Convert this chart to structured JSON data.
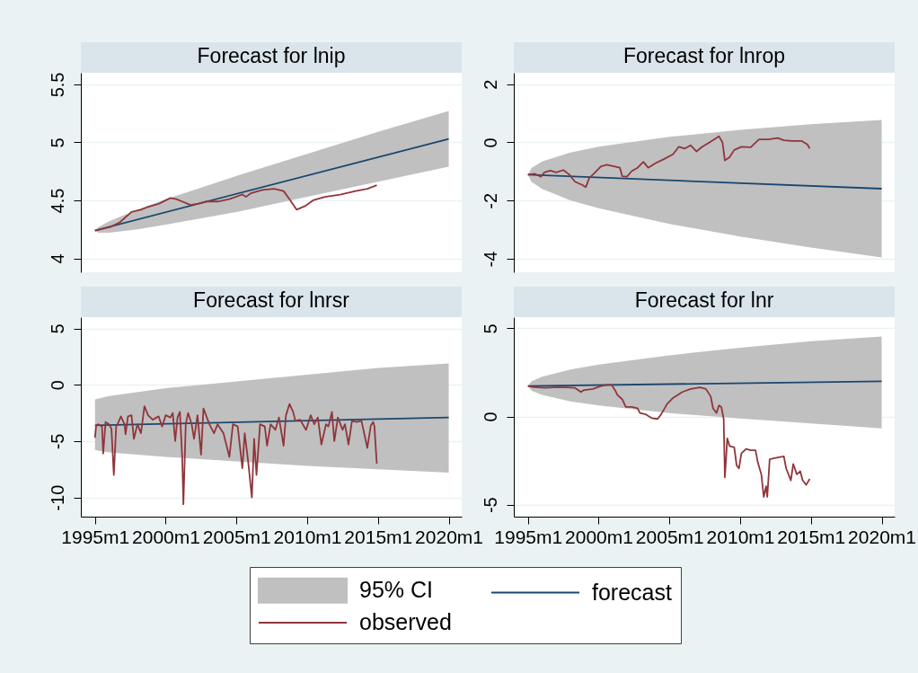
{
  "chart_data": [
    {
      "type": "line",
      "title": "Forecast for lnip",
      "xlim": [
        "1994-01",
        "2020-12"
      ],
      "ylim": [
        3.88,
        5.6
      ],
      "yticks": [
        4,
        4.5,
        5,
        5.5
      ],
      "grid": "y",
      "tick_labels": "y",
      "series": [
        {
          "color": "#c0c0c0",
          "x": [
            "1995-01",
            "1995-04",
            "1996-01",
            "1998-01",
            "2000-01",
            "2005-01",
            "2010-01",
            "2015-01",
            "2020-01"
          ],
          "values": [
            null,
            null,
            null,
            null,
            null,
            null,
            null,
            null,
            null
          ],
          "lower": [
            4.24,
            4.22,
            4.22,
            4.25,
            4.29,
            4.4,
            4.53,
            4.66,
            4.79
          ],
          "upper": [
            4.24,
            4.27,
            4.32,
            4.42,
            4.51,
            4.71,
            4.9,
            5.09,
            5.27
          ]
        },
        {
          "color": "#1a476f",
          "x": [
            "1995-01",
            "2020-01"
          ],
          "values": [
            4.24,
            5.03
          ]
        },
        {
          "color": "#90353b",
          "x": [
            "1995-01",
            "1996-02",
            "1996-10",
            "1997-08",
            "1998-04",
            "1998-09",
            "1999-07",
            "2000-05",
            "2000-10",
            "2001-03",
            "2001-10",
            "2002-04",
            "2002-11",
            "2003-09",
            "2004-07",
            "2005-06",
            "2005-09",
            "2006-01",
            "2006-11",
            "2007-09",
            "2008-05",
            "2008-10",
            "2009-04",
            "2009-11",
            "2010-06",
            "2011-04",
            "2012-05",
            "2013-06",
            "2014-04",
            "2014-12"
          ],
          "values": [
            4.24,
            4.27,
            4.31,
            4.4,
            4.42,
            4.44,
            4.47,
            4.52,
            4.51,
            4.49,
            4.46,
            4.47,
            4.49,
            4.49,
            4.51,
            4.55,
            4.53,
            4.56,
            4.59,
            4.6,
            4.58,
            4.51,
            4.42,
            4.45,
            4.5,
            4.53,
            4.55,
            4.58,
            4.6,
            4.63
          ]
        }
      ]
    },
    {
      "type": "line",
      "title": "Forecast for lnrop",
      "xlim": [
        "1994-01",
        "2020-12"
      ],
      "ylim": [
        -4.46,
        2.39
      ],
      "yticks": [
        -4,
        -2,
        0,
        2
      ],
      "grid": "y",
      "tick_labels": "y",
      "series": [
        {
          "color": "#c0c0c0",
          "x": [
            "1995-01",
            "1995-04",
            "1996-01",
            "1998-01",
            "2000-01",
            "2005-01",
            "2010-01",
            "2015-01",
            "2020-01"
          ],
          "values": [
            null,
            null,
            null,
            null,
            null,
            null,
            null,
            null,
            null
          ],
          "lower": [
            -1.11,
            -1.35,
            -1.6,
            -1.99,
            -2.26,
            -2.8,
            -3.23,
            -3.61,
            -3.95
          ],
          "upper": [
            -1.11,
            -0.88,
            -0.66,
            -0.35,
            -0.15,
            0.19,
            0.43,
            0.62,
            0.77
          ]
        },
        {
          "color": "#1a476f",
          "x": [
            "1995-01",
            "2020-01"
          ],
          "values": [
            -1.11,
            -1.59
          ]
        },
        {
          "color": "#90353b",
          "x": [
            "1995-01",
            "1995-07",
            "1995-12",
            "1996-03",
            "1996-08",
            "1997-01",
            "1997-07",
            "1997-12",
            "1998-05",
            "1998-11",
            "1999-02",
            "1999-05",
            "1999-10",
            "2000-03",
            "2000-08",
            "2001-02",
            "2001-07",
            "2001-09",
            "2002-01",
            "2002-05",
            "2002-10",
            "2003-03",
            "2003-07",
            "2004-01",
            "2004-09",
            "2005-04",
            "2005-09",
            "2006-02",
            "2006-07",
            "2006-12",
            "2007-05",
            "2007-11",
            "2008-05",
            "2008-07",
            "2008-10",
            "2008-12",
            "2009-04",
            "2009-08",
            "2010-02",
            "2010-10",
            "2011-05",
            "2012-01",
            "2012-09",
            "2013-02",
            "2013-09",
            "2014-05",
            "2014-10",
            "2014-12"
          ],
          "values": [
            -1.11,
            -1.08,
            -1.18,
            -1.03,
            -0.97,
            -1.03,
            -0.95,
            -1.1,
            -1.35,
            -1.46,
            -1.54,
            -1.23,
            -1.03,
            -0.82,
            -0.77,
            -0.82,
            -0.87,
            -1.16,
            -1.18,
            -0.99,
            -0.87,
            -0.67,
            -0.87,
            -0.72,
            -0.56,
            -0.41,
            -0.15,
            -0.21,
            -0.1,
            -0.31,
            -0.15,
            0,
            0.15,
            0.21,
            0,
            -0.62,
            -0.51,
            -0.26,
            -0.15,
            -0.17,
            0.1,
            0.1,
            0.15,
            0.07,
            0.05,
            0.05,
            -0.07,
            -0.21
          ]
        }
      ]
    },
    {
      "type": "line",
      "title": "Forecast for lnrsr",
      "xlim": [
        "1994-01",
        "2020-12"
      ],
      "xticks": [
        {
          "value": "1995-01",
          "label": "1995m1"
        },
        {
          "value": "2000-01",
          "label": "2000m1"
        },
        {
          "value": "2005-01",
          "label": "2005m1"
        },
        {
          "value": "2010-01",
          "label": "2010m1"
        },
        {
          "value": "2015-01",
          "label": "2015m1"
        },
        {
          "value": "2020-01",
          "label": "2020m1"
        }
      ],
      "ylim": [
        -11.7,
        6
      ],
      "yticks": [
        -10,
        -5,
        0,
        5
      ],
      "grid": "y",
      "series": [
        {
          "color": "#c0c0c0",
          "x": [
            "1995-01",
            "1996-01",
            "2000-01",
            "2005-01",
            "2010-01",
            "2015-01",
            "2020-01"
          ],
          "values": [
            null,
            null,
            null,
            null,
            null,
            null,
            null
          ],
          "lower": [
            -5.8,
            -6,
            -6.4,
            -6.8,
            -7.2,
            -7.5,
            -7.8
          ],
          "upper": [
            -1.3,
            -1,
            -0.3,
            0.3,
            0.9,
            1.5,
            1.9
          ]
        },
        {
          "color": "#1a476f",
          "x": [
            "1995-01",
            "2020-01"
          ],
          "values": [
            -3.6,
            -2.9
          ]
        },
        {
          "color": "#90353b",
          "x": [
            "1995-01",
            "1995-02",
            "1995-04",
            "1995-07",
            "1995-08",
            "1995-10",
            "1996-01",
            "1996-03",
            "1996-05",
            "1996-07",
            "1996-09",
            "1996-11",
            "1997-02",
            "1997-03",
            "1997-05",
            "1997-08",
            "1997-10",
            "1998-01",
            "1998-04",
            "1998-07",
            "1998-10",
            "1999-02",
            "1999-07",
            "1999-10",
            "2000-01",
            "2000-05",
            "2000-07",
            "2000-09",
            "2000-11",
            "2001-01",
            "2001-03",
            "2001-04",
            "2001-06",
            "2001-08",
            "2001-11",
            "2002-01",
            "2002-04",
            "2002-07",
            "2002-09",
            "2003-02",
            "2003-06",
            "2003-09",
            "2004-02",
            "2004-07",
            "2004-10",
            "2005-02",
            "2005-06",
            "2005-08",
            "2005-11",
            "2006-02",
            "2006-04",
            "2006-06",
            "2006-09",
            "2007-01",
            "2007-03",
            "2007-06",
            "2007-10",
            "2008-01",
            "2008-05",
            "2008-07",
            "2008-10",
            "2009-01",
            "2009-03",
            "2009-07",
            "2009-12",
            "2010-04",
            "2010-07",
            "2010-10",
            "2011-01",
            "2011-05",
            "2011-07",
            "2011-10",
            "2011-12",
            "2012-03",
            "2012-07",
            "2012-09",
            "2012-12",
            "2013-03",
            "2013-07",
            "2013-11",
            "2014-04",
            "2014-07",
            "2014-09",
            "2014-10",
            "2014-12"
          ],
          "values": [
            -4.7,
            -3.6,
            -3.5,
            -3.7,
            -6.1,
            -3.3,
            -3.5,
            -3.9,
            -8,
            -3.7,
            -3.3,
            -2.8,
            -3.5,
            -4.4,
            -2.8,
            -2.7,
            -4.8,
            -3.5,
            -4.3,
            -1.9,
            -2.7,
            -3.1,
            -2.8,
            -3.7,
            -2.7,
            -2.9,
            -2.5,
            -5,
            -2.9,
            -2.4,
            -6.4,
            -10.6,
            -3.5,
            -2.5,
            -3.5,
            -4.8,
            -2.7,
            -6.2,
            -2.1,
            -3.5,
            -4.3,
            -3.5,
            -4.3,
            -6.4,
            -3.5,
            -3.7,
            -7.4,
            -4.3,
            -6.9,
            -10,
            -4.8,
            -8,
            -3.5,
            -3.7,
            -5.4,
            -3.5,
            -4,
            -2.9,
            -5.4,
            -2.7,
            -1.7,
            -2.4,
            -3.2,
            -3.1,
            -4,
            -2.7,
            -3.5,
            -2.9,
            -5.3,
            -3.5,
            -3.7,
            -2.4,
            -5,
            -2.9,
            -4,
            -3.5,
            -5.3,
            -3.2,
            -3.3,
            -3.2,
            -5.6,
            -3.6,
            -3.3,
            -3.7,
            -7
          ]
        }
      ]
    },
    {
      "type": "line",
      "title": "Forecast for lnr",
      "xlim": [
        "1994-01",
        "2020-12"
      ],
      "xticks": [
        {
          "value": "1995-01",
          "label": "1995m1"
        },
        {
          "value": "2000-01",
          "label": "2000m1"
        },
        {
          "value": "2005-01",
          "label": "2005m1"
        },
        {
          "value": "2010-01",
          "label": "2010m1"
        },
        {
          "value": "2015-01",
          "label": "2015m1"
        },
        {
          "value": "2020-01",
          "label": "2020m1"
        }
      ],
      "ylim": [
        -5.68,
        5.63
      ],
      "yticks": [
        -5,
        0,
        5
      ],
      "grid": "y",
      "legend": "bottom",
      "series": [
        {
          "name": "95% CI",
          "color": "#c0c0c0",
          "x": [
            "1995-01",
            "1995-04",
            "1996-01",
            "1998-01",
            "2000-01",
            "2005-01",
            "2010-01",
            "2015-01",
            "2020-01"
          ],
          "values": [
            null,
            null,
            null,
            null,
            null,
            null,
            null,
            null,
            null
          ],
          "lower": [
            1.73,
            1.47,
            1.22,
            0.86,
            0.62,
            0.19,
            -0.12,
            -0.39,
            -0.68
          ],
          "upper": [
            1.73,
            1.99,
            2.26,
            2.66,
            2.94,
            3.47,
            3.9,
            4.27,
            4.54
          ]
        },
        {
          "name": "forecast",
          "color": "#1a476f",
          "x": [
            "1995-01",
            "2020-01"
          ],
          "values": [
            1.73,
            1.99
          ]
        },
        {
          "name": "observed",
          "color": "#90353b",
          "x": [
            "1995-01",
            "1995-05",
            "1995-10",
            "1996-03",
            "1996-11",
            "1997-09",
            "1998-05",
            "1998-10",
            "1998-12",
            "1999-08",
            "2000-03",
            "2000-08",
            "2000-12",
            "2001-03",
            "2001-05",
            "2001-09",
            "2001-12",
            "2002-05",
            "2002-10",
            "2002-12",
            "2003-05",
            "2003-10",
            "2004-03",
            "2004-06",
            "2004-11",
            "2005-04",
            "2005-12",
            "2006-07",
            "2007-03",
            "2007-08",
            "2007-12",
            "2008-02",
            "2008-05",
            "2008-07",
            "2008-09",
            "2008-11",
            "2008-12",
            "2009-01",
            "2009-02",
            "2009-04",
            "2009-08",
            "2009-10",
            "2009-12",
            "2010-02",
            "2010-06",
            "2010-10",
            "2011-02",
            "2011-04",
            "2011-07",
            "2011-09",
            "2011-11",
            "2011-12",
            "2012-02",
            "2012-07",
            "2013-02",
            "2013-04",
            "2013-08",
            "2013-10",
            "2014-01",
            "2014-04",
            "2014-06",
            "2014-09",
            "2014-12"
          ],
          "values": [
            1.73,
            1.68,
            1.65,
            1.62,
            1.65,
            1.65,
            1.62,
            1.39,
            1.48,
            1.56,
            1.73,
            1.79,
            1.79,
            1.48,
            1.22,
            0.97,
            0.54,
            0.54,
            0.46,
            0.2,
            0.12,
            -0.09,
            -0.14,
            0.12,
            0.71,
            1.05,
            1.39,
            1.56,
            1.65,
            1.56,
            1.14,
            0.46,
            0.2,
            0.63,
            0.54,
            -0.14,
            -3.45,
            -2.43,
            -1.24,
            -1.67,
            -1.75,
            -2.77,
            -2.94,
            -2.09,
            -1.84,
            -1.92,
            -1.92,
            -2.6,
            -3.28,
            -4.56,
            -3.96,
            -4.56,
            -2.43,
            -2.35,
            -2.26,
            -2.94,
            -3.62,
            -2.69,
            -3.28,
            -3.11,
            -3.62,
            -3.88,
            -3.54
          ]
        }
      ]
    }
  ]
}
